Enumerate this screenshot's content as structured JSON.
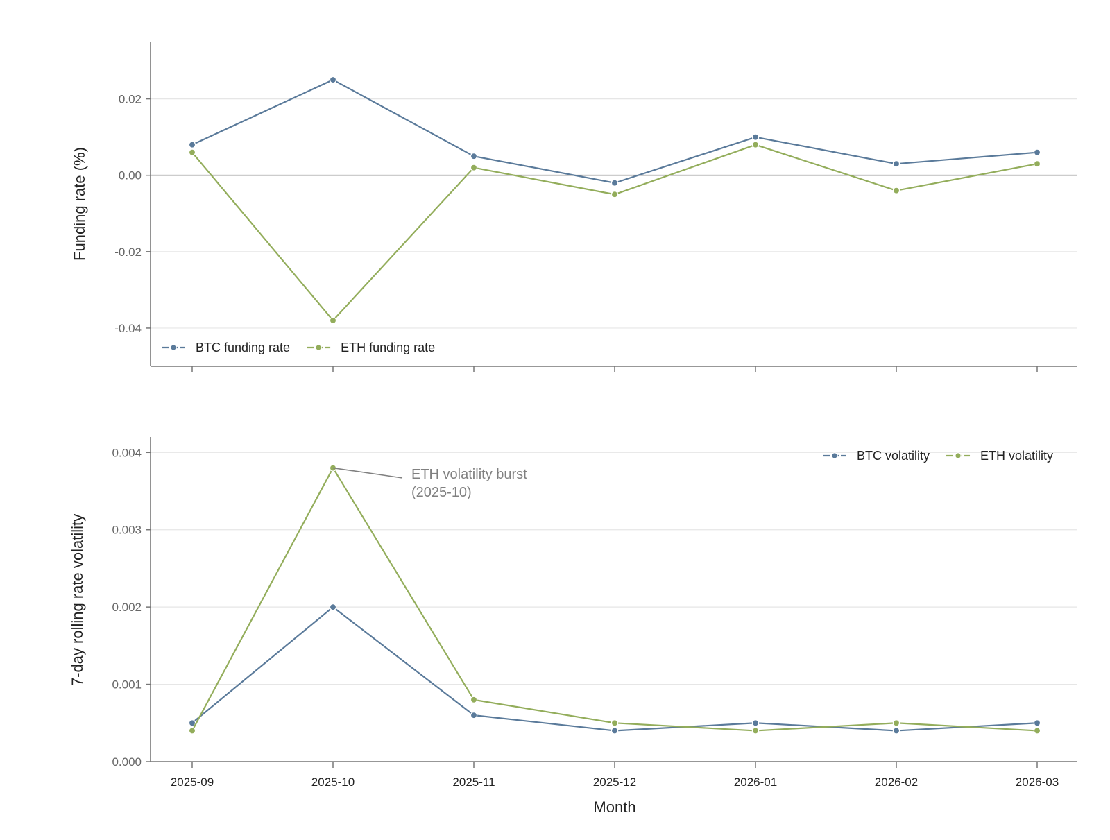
{
  "chart_data": [
    {
      "type": "line",
      "categories": [
        "2025-09",
        "2025-10",
        "2025-11",
        "2025-12",
        "2026-01",
        "2026-02",
        "2026-03"
      ],
      "ylabel": "Funding rate (%)",
      "xlabel": "",
      "ylim": [
        -0.05,
        0.035
      ],
      "yticks": [
        -0.04,
        -0.02,
        0.0,
        0.02
      ],
      "ytick_labels": [
        "-0.04",
        "-0.02",
        "0.00",
        "0.02"
      ],
      "show_xtick_labels": false,
      "zero_line": true,
      "grid": "y",
      "legend_position": "lower-left",
      "series": [
        {
          "name": "BTC funding rate",
          "color": "#5a7a9a",
          "values": [
            0.008,
            0.025,
            0.005,
            -0.002,
            0.01,
            0.003,
            0.006
          ]
        },
        {
          "name": "ETH funding rate",
          "color": "#93ad5b",
          "values": [
            0.006,
            -0.038,
            0.002,
            -0.005,
            0.008,
            -0.004,
            0.003
          ]
        }
      ]
    },
    {
      "type": "line",
      "categories": [
        "2025-09",
        "2025-10",
        "2025-11",
        "2025-12",
        "2026-01",
        "2026-02",
        "2026-03"
      ],
      "ylabel": "7-day rolling rate volatility",
      "xlabel": "Month",
      "ylim": [
        0.0,
        0.0042
      ],
      "yticks": [
        0.0,
        0.001,
        0.002,
        0.003,
        0.004
      ],
      "ytick_labels": [
        "0.000",
        "0.001",
        "0.002",
        "0.003",
        "0.004"
      ],
      "show_xtick_labels": true,
      "zero_line": false,
      "grid": "y",
      "legend_position": "upper-right",
      "series": [
        {
          "name": "BTC volatility",
          "color": "#5a7a9a",
          "values": [
            0.0005,
            0.002,
            0.0006,
            0.0004,
            0.0005,
            0.0004,
            0.0005
          ]
        },
        {
          "name": "ETH volatility",
          "color": "#93ad5b",
          "values": [
            0.0004,
            0.0038,
            0.0008,
            0.0005,
            0.0004,
            0.0005,
            0.0004
          ]
        }
      ],
      "annotation": {
        "lines": [
          "ETH volatility burst",
          "(2025-10)"
        ],
        "point_category": "2025-10",
        "point_value": 0.0038
      }
    }
  ]
}
